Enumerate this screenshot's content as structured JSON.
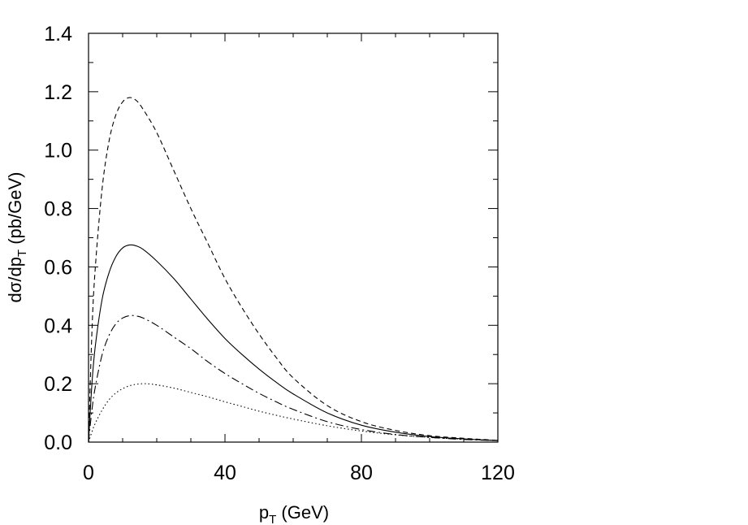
{
  "chart_data": {
    "type": "line",
    "xlabel": "p_T (GeV)",
    "ylabel": "dσ/dp_T (pb/GeV)",
    "xlabel_parts": {
      "main": "p",
      "sub": "T",
      "rest": " (GeV)"
    },
    "ylabel_parts": {
      "main": "dσ/dp",
      "sub": "T",
      "rest": " (pb/GeV)"
    },
    "xlim": [
      0,
      120
    ],
    "ylim": [
      0,
      1.4
    ],
    "x_ticks": [
      0,
      40,
      80,
      120
    ],
    "x_tick_labels": [
      "0",
      "40",
      "80",
      "120"
    ],
    "y_ticks": [
      0,
      0.2,
      0.4,
      0.6,
      0.8,
      1.0,
      1.2,
      1.4
    ],
    "y_tick_labels": [
      "0.0",
      "0.2",
      "0.4",
      "0.6",
      "0.8",
      "1.0",
      "1.2",
      "1.4"
    ],
    "x_minor_step": 10,
    "y_minor_step": 0.1,
    "grid": false,
    "legend": "none",
    "series": [
      {
        "style": "dashed",
        "x": [
          0,
          1,
          2,
          4,
          6,
          8,
          10,
          12,
          14,
          16,
          20,
          25,
          30,
          35,
          40,
          45,
          50,
          55,
          60,
          70,
          80,
          90,
          100,
          110,
          120
        ],
        "y": [
          0,
          0.38,
          0.6,
          0.87,
          1.03,
          1.12,
          1.165,
          1.18,
          1.17,
          1.14,
          1.06,
          0.93,
          0.8,
          0.68,
          0.56,
          0.46,
          0.37,
          0.29,
          0.22,
          0.125,
          0.07,
          0.04,
          0.022,
          0.013,
          0.006
        ]
      },
      {
        "style": "solid",
        "x": [
          0,
          1,
          2,
          4,
          6,
          8,
          10,
          12,
          14,
          16,
          20,
          25,
          30,
          35,
          40,
          45,
          50,
          55,
          60,
          70,
          80,
          90,
          100,
          110,
          120
        ],
        "y": [
          0,
          0.2,
          0.33,
          0.49,
          0.58,
          0.635,
          0.665,
          0.675,
          0.672,
          0.66,
          0.62,
          0.56,
          0.49,
          0.42,
          0.355,
          0.3,
          0.25,
          0.205,
          0.165,
          0.1,
          0.058,
          0.034,
          0.019,
          0.011,
          0.005
        ]
      },
      {
        "style": "dash-dot",
        "x": [
          0,
          1,
          2,
          4,
          6,
          8,
          10,
          12,
          14,
          16,
          20,
          25,
          30,
          35,
          40,
          45,
          50,
          55,
          60,
          70,
          80,
          90,
          100,
          110,
          120
        ],
        "y": [
          0,
          0.11,
          0.19,
          0.3,
          0.365,
          0.405,
          0.425,
          0.433,
          0.432,
          0.425,
          0.4,
          0.36,
          0.32,
          0.275,
          0.235,
          0.2,
          0.167,
          0.138,
          0.112,
          0.07,
          0.043,
          0.026,
          0.016,
          0.009,
          0.005
        ]
      },
      {
        "style": "dotted",
        "x": [
          0,
          1,
          2,
          4,
          6,
          8,
          10,
          12,
          14,
          16,
          18,
          20,
          25,
          30,
          35,
          40,
          45,
          50,
          55,
          60,
          70,
          80,
          90,
          100,
          110,
          120
        ],
        "y": [
          0,
          0.035,
          0.065,
          0.11,
          0.145,
          0.168,
          0.183,
          0.193,
          0.198,
          0.2,
          0.199,
          0.196,
          0.185,
          0.17,
          0.155,
          0.138,
          0.122,
          0.106,
          0.092,
          0.079,
          0.056,
          0.038,
          0.025,
          0.016,
          0.01,
          0.006
        ]
      }
    ]
  }
}
